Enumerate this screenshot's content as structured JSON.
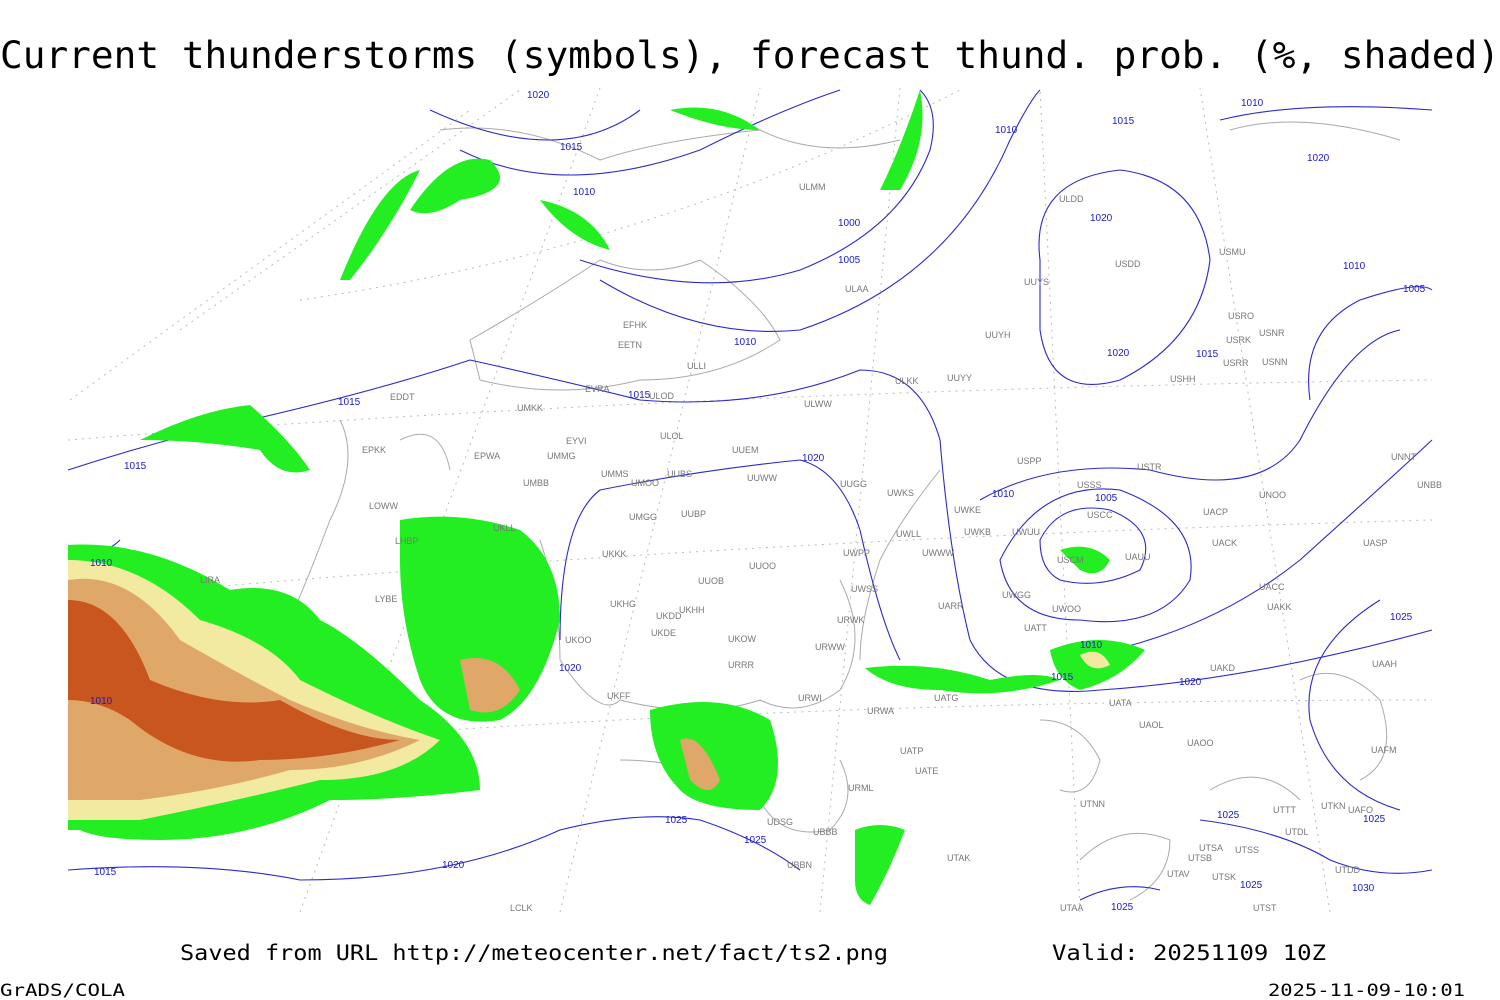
{
  "title": "Current thunderstorms (symbols), forecast thund. prob. (%, shaded)",
  "footer": {
    "source": "Saved from URL http://meteocenter.net/fact/ts2.png",
    "valid": "Valid: 20251109 10Z",
    "software": "GrADS/COLA",
    "timestamp": "2025-11-09-10:01"
  },
  "map": {
    "isobar_labels": [
      "1020",
      "1015",
      "1010",
      "1000",
      "1005",
      "1010",
      "1015",
      "1015",
      "1015",
      "1010",
      "1010",
      "1015",
      "1020",
      "1025",
      "1025",
      "1020",
      "1020",
      "1010",
      "1015",
      "1020",
      "1010",
      "1020",
      "1010",
      "1005",
      "1020",
      "1015",
      "1010",
      "1005",
      "1010",
      "1015",
      "1020",
      "1025",
      "1025",
      "1025",
      "1025",
      "1025",
      "1030"
    ],
    "stations": [
      "ULMM",
      "ULDD",
      "USDD",
      "USMU",
      "UUYS",
      "ULAA",
      "EFHK",
      "EETN",
      "ULLI",
      "UUYH",
      "USRO",
      "USRK",
      "USNR",
      "USRR",
      "USNN",
      "UUYY",
      "USHH",
      "ULKK",
      "EVRA",
      "ULOD",
      "ULWW",
      "EDDT",
      "UMKK",
      "EYVI",
      "ULOL",
      "UUEM",
      "EPKK",
      "EPWA",
      "UMMG",
      "USPP",
      "USTR",
      "UMMS",
      "UUBS",
      "UMOO",
      "UUWW",
      "UUGG",
      "UWKS",
      "USSS",
      "UNNT",
      "UNBB",
      "UMBB",
      "LOWW",
      "UWKE",
      "UNOO",
      "UACP",
      "USCC",
      "UWKB",
      "UWUU",
      "UWLL",
      "UMGG",
      "UUBP",
      "UKLL",
      "LHBP",
      "UACK",
      "UASP",
      "UWWW",
      "USCM",
      "UAUU",
      "UKKK",
      "UUOO",
      "UWPP",
      "LIRA",
      "UUOB",
      "LYBE",
      "UACC",
      "UWGG",
      "UWSS",
      "UAKK",
      "UKHG",
      "UKDD",
      "UKHH",
      "UARR",
      "UWOO",
      "URWK",
      "UKDE",
      "UATT",
      "UKOO",
      "UKOW",
      "URWW",
      "URRR",
      "UAAH",
      "UAKD",
      "UKFF",
      "URWI",
      "UATG",
      "UATA",
      "URWA",
      "UAOL",
      "UATE",
      "UATP",
      "UAOO",
      "UAFM",
      "URML",
      "UTNN",
      "UTTT",
      "UTKN",
      "UAFO",
      "UTDL",
      "UBBB",
      "UTSA",
      "UTSS",
      "UTSB",
      "UTAK",
      "UTDD",
      "UBBN",
      "UTAV",
      "UTSK",
      "UDSG",
      "LCLK",
      "UTAA",
      "UTST"
    ]
  }
}
